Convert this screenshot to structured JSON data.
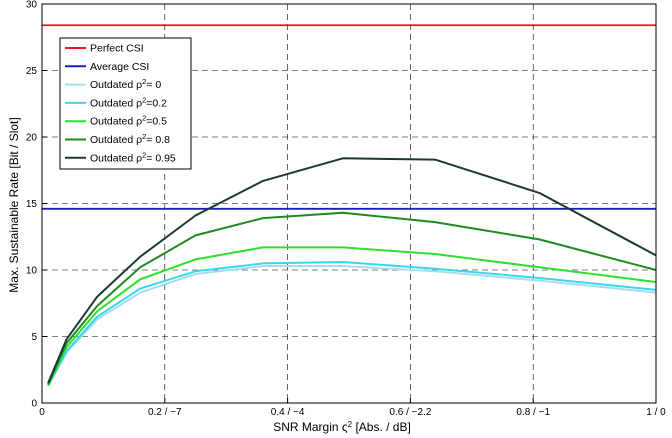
{
  "chart_data": {
    "type": "line",
    "xlabel_main": "SNR Margin ς",
    "xlabel_sup": "2",
    "xlabel_tail": " [Abs. / dB]",
    "ylabel": "Max. Sustainable Rate [Bit / Slot]",
    "xlim": [
      0,
      1
    ],
    "ylim": [
      0,
      30
    ],
    "grid": true,
    "legend_position": "top-left",
    "x_ticks": [
      {
        "value": 0,
        "label": "0"
      },
      {
        "value": 0.2,
        "label": "0.2 / −7"
      },
      {
        "value": 0.4,
        "label": "0.4 / −4"
      },
      {
        "value": 0.6,
        "label": "0.6 / −2.2"
      },
      {
        "value": 0.8,
        "label": "0.8 / −1"
      },
      {
        "value": 1.0,
        "label": "1 / 0"
      }
    ],
    "y_ticks": [
      0,
      5,
      10,
      15,
      20,
      25,
      30
    ],
    "x": [
      0.01,
      0.04,
      0.09,
      0.16,
      0.25,
      0.36,
      0.49,
      0.64,
      0.81,
      1.0
    ],
    "series": [
      {
        "name": "Perfect CSI",
        "label_sup": "",
        "label_tail": "",
        "color": "#e8141e",
        "constant": 28.4
      },
      {
        "name": "Average CSI",
        "label_sup": "",
        "label_tail": "",
        "color": "#1a22b8",
        "constant": 14.6
      },
      {
        "name": "Outdated ρ",
        "label_sup": "2",
        "label_tail": "= 0",
        "color": "#a8dcf2",
        "values": [
          1.3,
          3.8,
          6.3,
          8.3,
          9.7,
          10.3,
          10.3,
          9.9,
          9.2,
          8.3
        ]
      },
      {
        "name": "Outdated ρ",
        "label_sup": "2",
        "label_tail": "=0.2",
        "color": "#38d8e8",
        "values": [
          1.3,
          3.9,
          6.5,
          8.6,
          9.9,
          10.5,
          10.6,
          10.1,
          9.4,
          8.5
        ]
      },
      {
        "name": "Outdated ρ",
        "label_sup": "2",
        "label_tail": "=0.5",
        "color": "#2ee02e",
        "values": [
          1.3,
          4.2,
          6.9,
          9.3,
          10.8,
          11.7,
          11.7,
          11.2,
          10.2,
          9.1
        ]
      },
      {
        "name": "Outdated ρ",
        "label_sup": "2",
        "label_tail": "= 0.8",
        "color": "#1f8a1f",
        "values": [
          1.4,
          4.5,
          7.3,
          10.2,
          12.6,
          13.9,
          14.3,
          13.6,
          12.3,
          10.0
        ]
      },
      {
        "name": "Outdated ρ",
        "label_sup": "2",
        "label_tail": "= 0.95",
        "color": "#1c3a30",
        "values": [
          1.5,
          4.8,
          8.0,
          11.0,
          14.1,
          16.7,
          18.4,
          18.3,
          15.8,
          11.1
        ]
      }
    ]
  }
}
